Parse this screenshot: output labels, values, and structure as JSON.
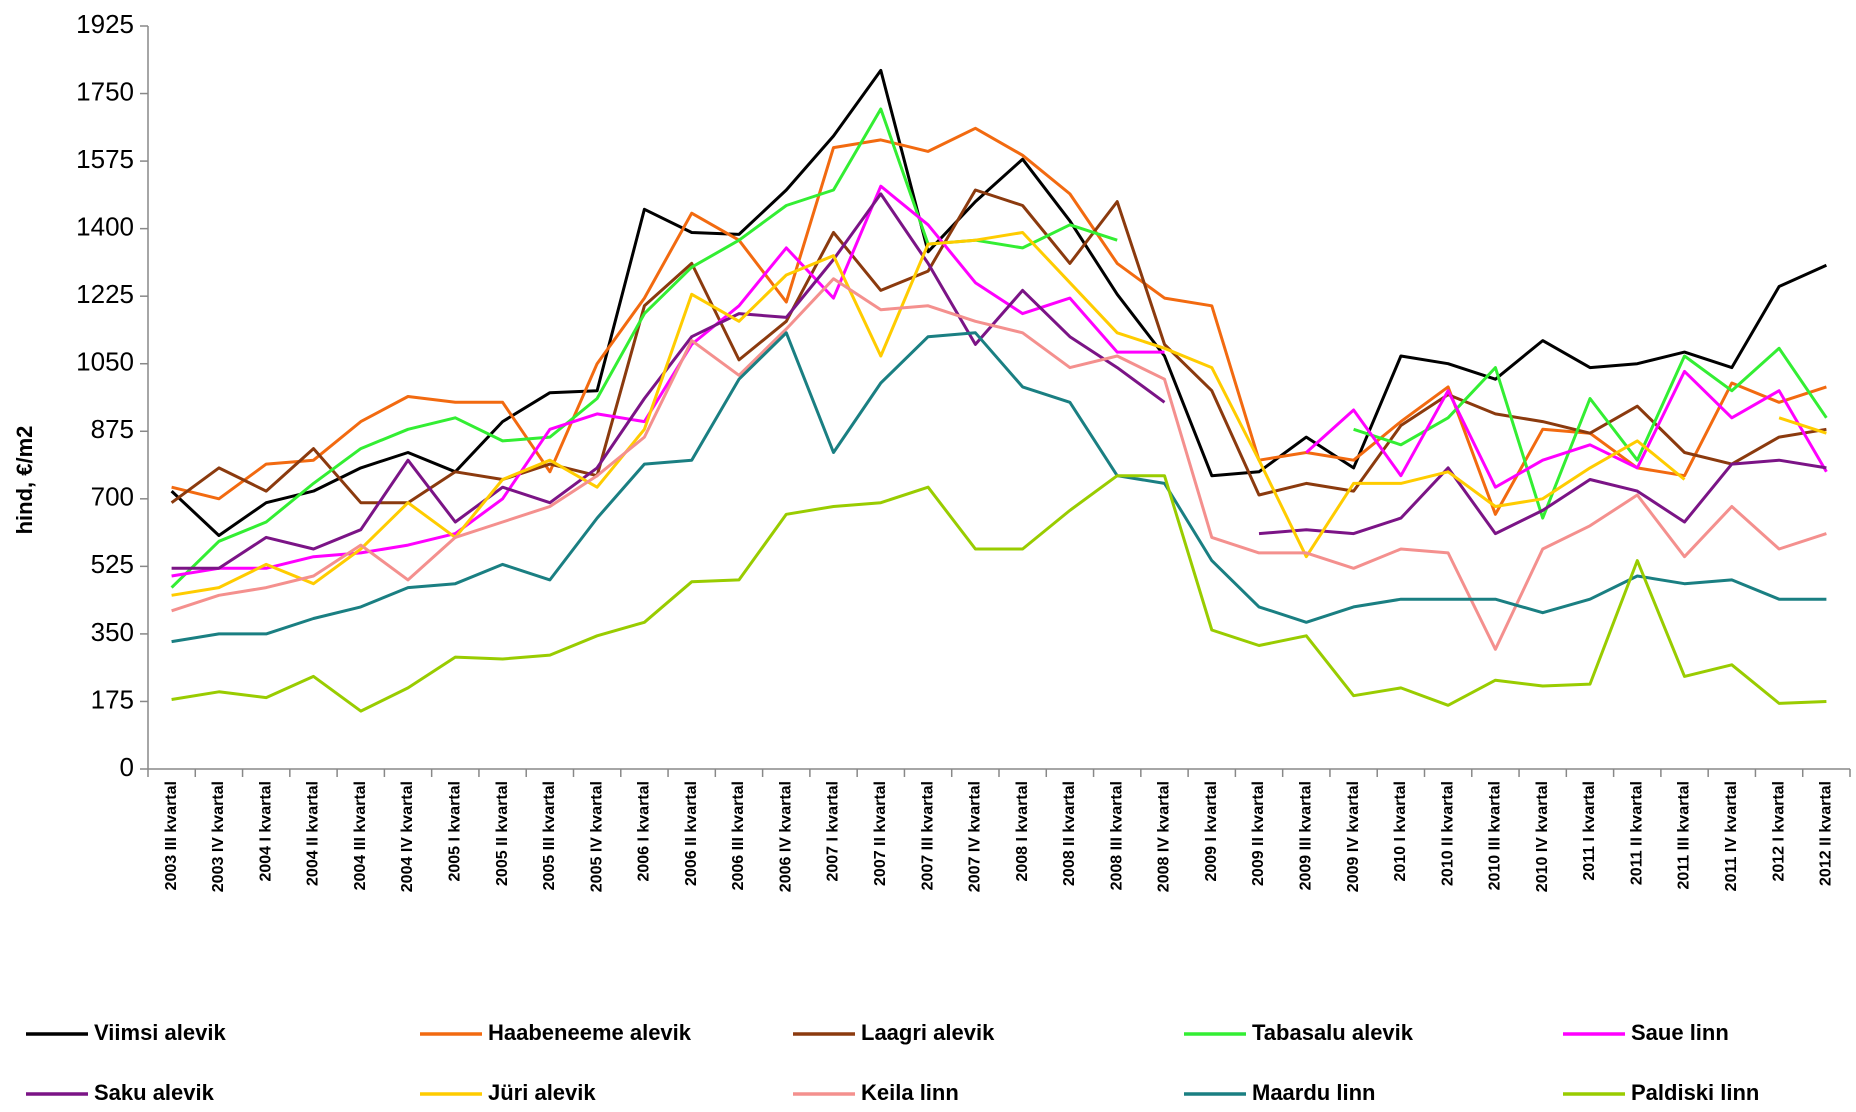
{
  "chart_data": {
    "type": "line",
    "y_label": "hind, €/m2",
    "categories": [
      "2003 III kvartal",
      "2003 IV kvartal",
      "2004 I kvartal",
      "2004 II kvartal",
      "2004 III kvartal",
      "2004 IV kvartal",
      "2005 I kvartal",
      "2005 II kvartal",
      "2005 III kvartal",
      "2005 IV kvartal",
      "2006 I kvartal",
      "2006 II kvartal",
      "2006 III kvartal",
      "2006 IV kvartal",
      "2007 I kvartal",
      "2007 II kvartal",
      "2007 III kvartal",
      "2007 IV kvartal",
      "2008 I kvartal",
      "2008 II kvartal",
      "2008 III kvartal",
      "2008 IV kvartal",
      "2009 I kvartal",
      "2009 II kvartal",
      "2009 III kvartal",
      "2009 IV kvartal",
      "2010 I kvartal",
      "2010 II kvartal",
      "2010 III kvartal",
      "2010 IV kvartal",
      "2011 I kvartal",
      "2011 II kvartal",
      "2011 III kvartal",
      "2011 IV kvartal",
      "2012 I kvartal",
      "2012 II kvartal"
    ],
    "series": [
      {
        "name": "Viimsi alevik",
        "color": "#000000",
        "values": [
          720,
          605,
          690,
          720,
          780,
          820,
          770,
          900,
          975,
          980,
          1450,
          1390,
          1385,
          1500,
          1640,
          1810,
          1340,
          1470,
          1580,
          1420,
          1230,
          1070,
          760,
          770,
          860,
          780,
          1070,
          1050,
          1010,
          1110,
          1040,
          1050,
          1080,
          1040,
          1250,
          1305
        ]
      },
      {
        "name": "Haabeneeme alevik",
        "color": "#f26a10",
        "values": [
          730,
          700,
          790,
          800,
          900,
          965,
          950,
          950,
          770,
          1050,
          1220,
          1440,
          1370,
          1210,
          1610,
          1630,
          1600,
          1660,
          1590,
          1490,
          1310,
          1220,
          1200,
          800,
          820,
          800,
          900,
          990,
          660,
          880,
          870,
          780,
          760,
          1000,
          950,
          990
        ]
      },
      {
        "name": "Laagri alevik",
        "color": "#8b3a0e",
        "values": [
          690,
          780,
          720,
          830,
          690,
          690,
          770,
          750,
          790,
          760,
          1200,
          1310,
          1060,
          1160,
          1390,
          1240,
          1290,
          1500,
          1460,
          1310,
          1470,
          1100,
          980,
          710,
          740,
          720,
          890,
          970,
          920,
          900,
          870,
          940,
          820,
          790,
          860,
          880
        ]
      },
      {
        "name": "Tabasalu alevik",
        "color": "#33ee33",
        "values": [
          470,
          590,
          640,
          740,
          830,
          880,
          910,
          850,
          860,
          960,
          1180,
          1300,
          1370,
          1460,
          1500,
          1710,
          1360,
          1370,
          1350,
          1410,
          1370,
          null,
          null,
          null,
          null,
          880,
          840,
          910,
          1040,
          650,
          960,
          800,
          1070,
          980,
          1090,
          910
        ]
      },
      {
        "name": "Saue linn",
        "color": "#ff00ff",
        "values": [
          500,
          520,
          520,
          550,
          560,
          580,
          610,
          700,
          880,
          920,
          900,
          1100,
          1200,
          1350,
          1220,
          1510,
          1410,
          1260,
          1180,
          1220,
          1080,
          1080,
          null,
          null,
          820,
          930,
          760,
          980,
          730,
          800,
          840,
          780,
          1030,
          910,
          980,
          770
        ]
      },
      {
        "name": "Saku alevik",
        "color": "#7b1486",
        "values": [
          520,
          520,
          600,
          570,
          620,
          800,
          640,
          730,
          690,
          780,
          960,
          1120,
          1180,
          1170,
          1320,
          1490,
          1310,
          1100,
          1240,
          1120,
          1040,
          950,
          null,
          610,
          620,
          610,
          650,
          780,
          610,
          670,
          750,
          720,
          640,
          790,
          800,
          780
        ]
      },
      {
        "name": "Jüri alevik",
        "color": "#ffcc00",
        "values": [
          450,
          470,
          530,
          480,
          570,
          690,
          600,
          750,
          800,
          730,
          880,
          1230,
          1160,
          1280,
          1330,
          1070,
          1360,
          1370,
          1390,
          1260,
          1130,
          1090,
          1040,
          800,
          550,
          740,
          740,
          770,
          680,
          700,
          780,
          850,
          750,
          null,
          910,
          870
        ]
      },
      {
        "name": "Keila linn",
        "color": "#f4908e",
        "values": [
          410,
          450,
          470,
          500,
          580,
          490,
          600,
          640,
          680,
          760,
          860,
          1110,
          1020,
          1140,
          1270,
          1190,
          1200,
          1160,
          1130,
          1040,
          1070,
          1010,
          600,
          560,
          560,
          520,
          570,
          560,
          310,
          570,
          630,
          710,
          550,
          680,
          570,
          610
        ]
      },
      {
        "name": "Maardu linn",
        "color": "#1a7f82",
        "values": [
          330,
          350,
          350,
          390,
          420,
          470,
          480,
          530,
          490,
          650,
          790,
          800,
          1010,
          1130,
          820,
          1000,
          1120,
          1130,
          990,
          950,
          760,
          740,
          540,
          420,
          380,
          420,
          440,
          440,
          440,
          405,
          440,
          500,
          480,
          490,
          440,
          440
        ]
      },
      {
        "name": "Paldiski linn",
        "color": "#99cc00",
        "values": [
          180,
          200,
          185,
          240,
          150,
          210,
          290,
          285,
          295,
          345,
          380,
          485,
          490,
          660,
          680,
          690,
          730,
          570,
          570,
          670,
          760,
          760,
          360,
          320,
          345,
          190,
          210,
          165,
          230,
          215,
          220,
          540,
          240,
          270,
          170,
          175
        ]
      }
    ],
    "ylim": [
      0,
      1925
    ],
    "yticks": [
      0,
      175,
      350,
      525,
      700,
      875,
      1050,
      1225,
      1400,
      1575,
      1750,
      1925
    ],
    "grid": false
  }
}
